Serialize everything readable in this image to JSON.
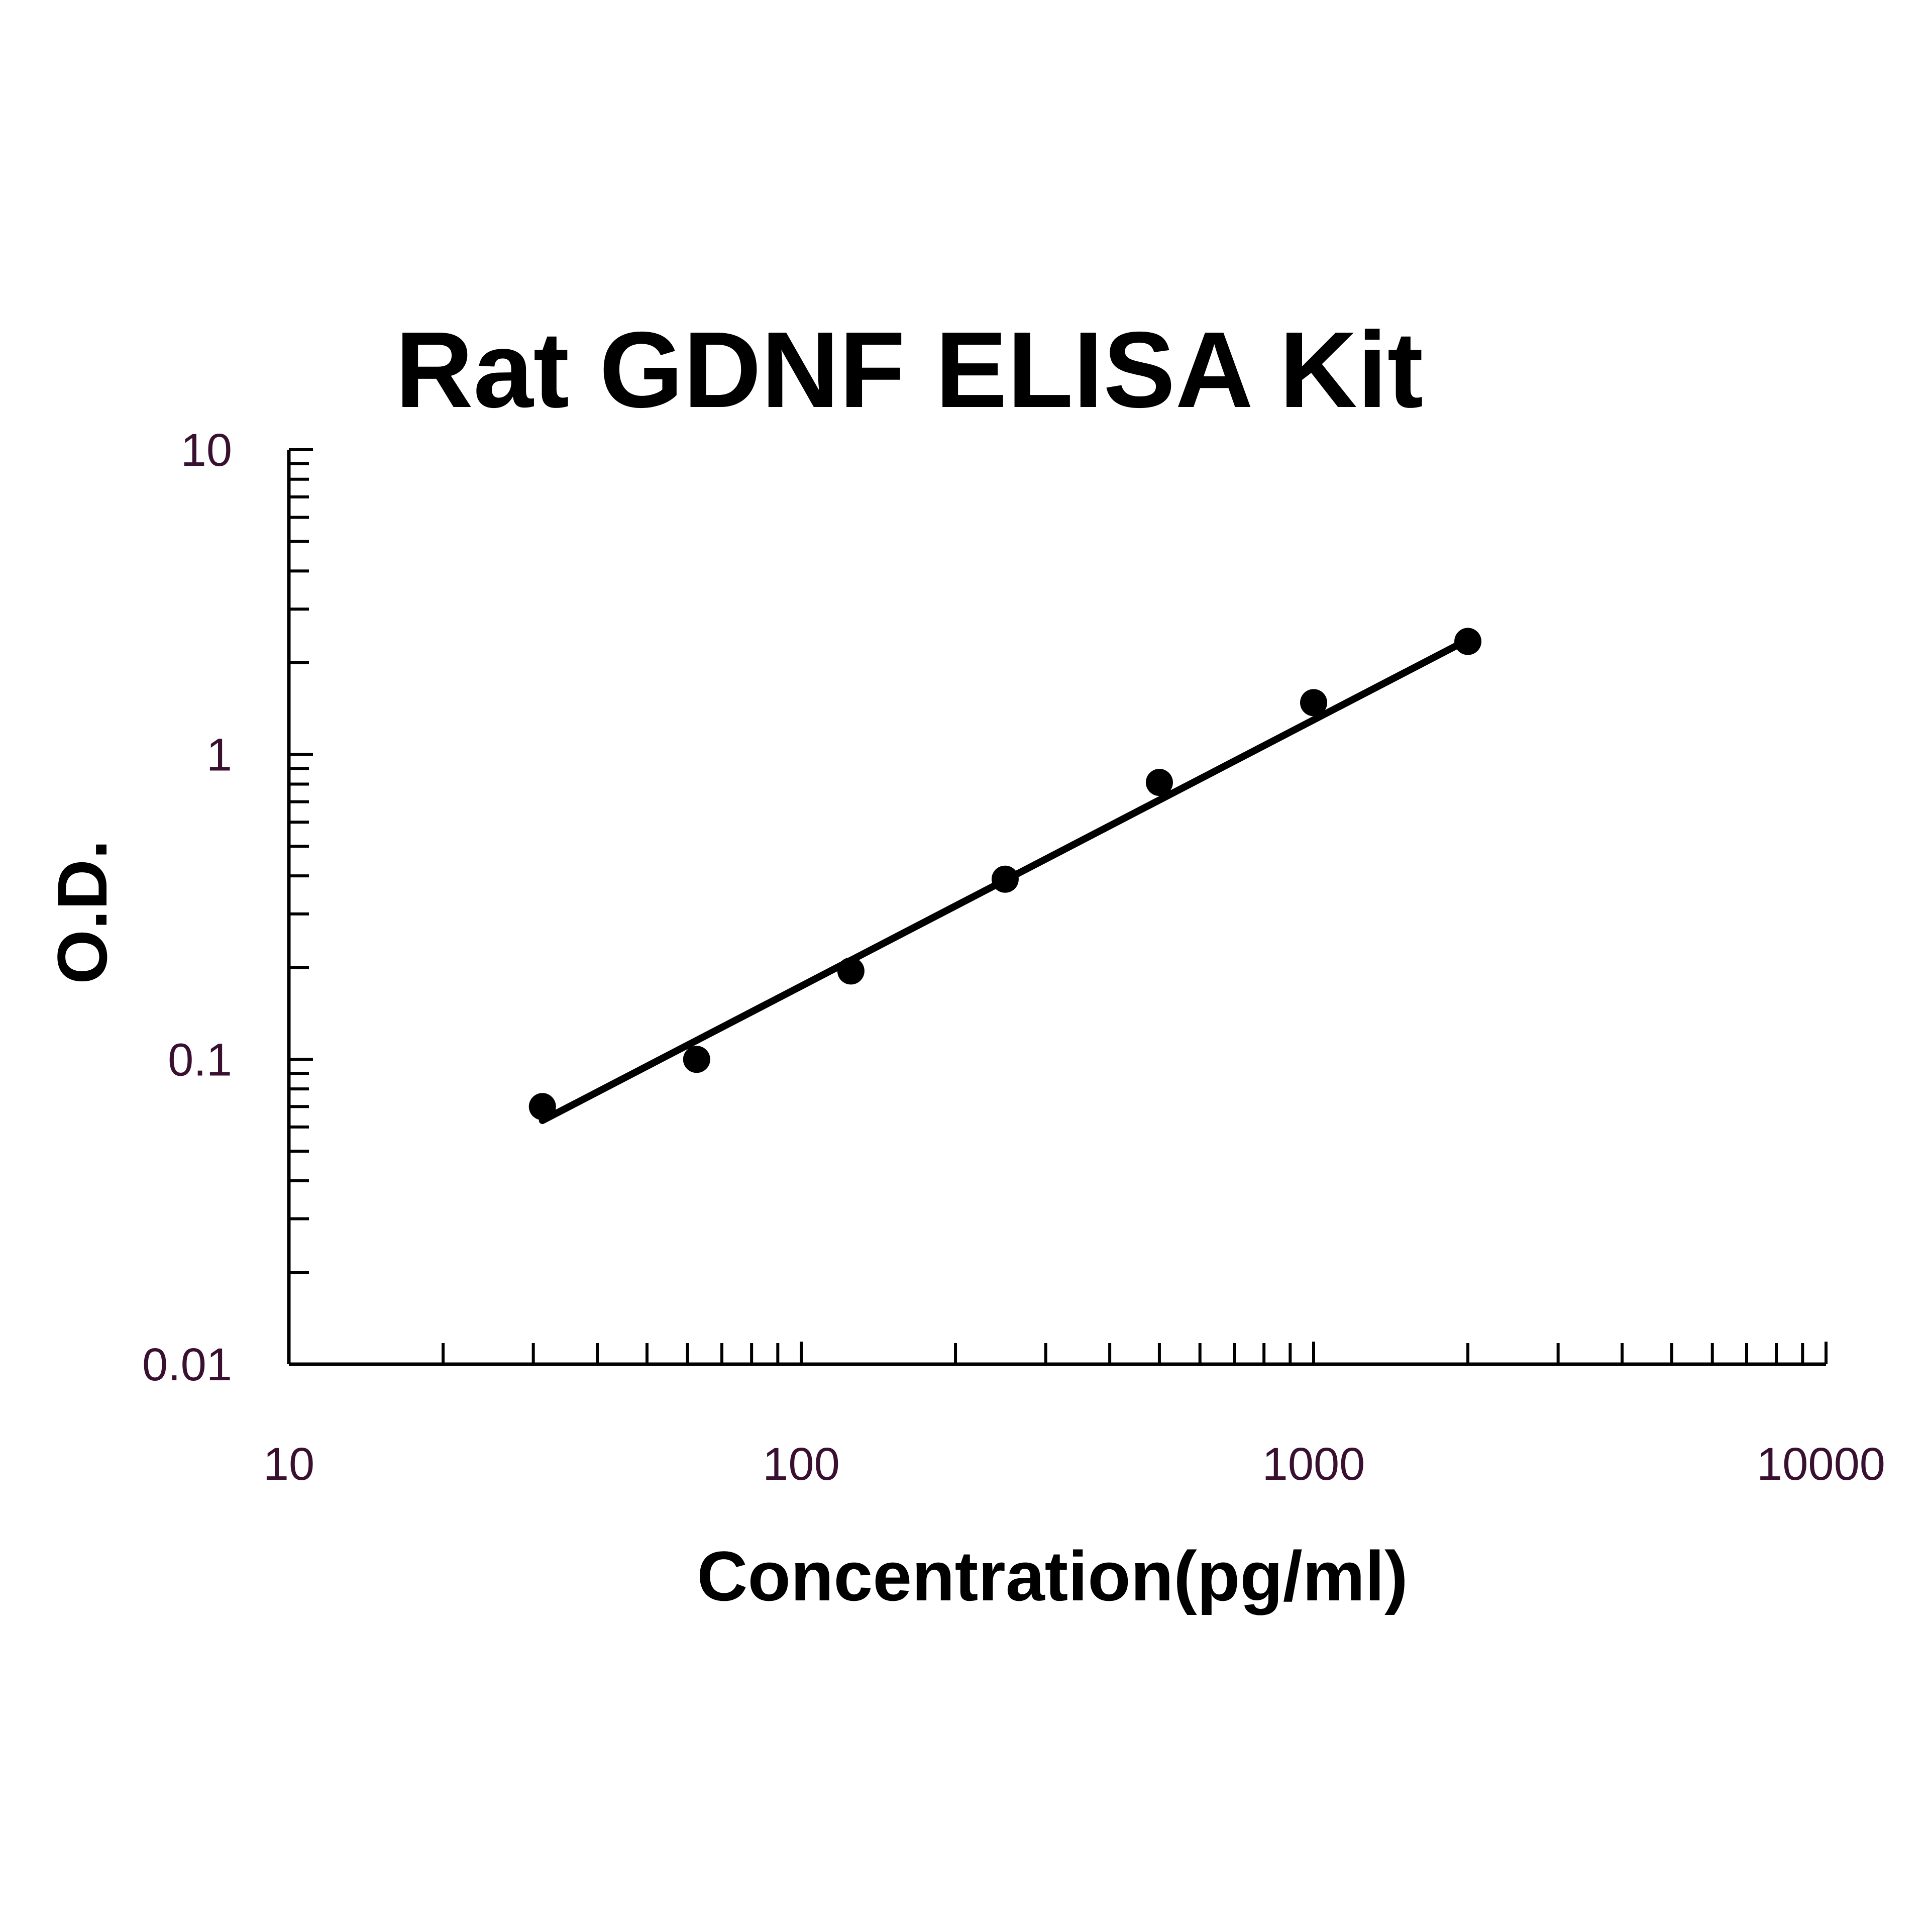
{
  "chart_data": {
    "type": "scatter",
    "title": "Rat GDNF ELISA Kit",
    "xlabel": "Concentration(pg/ml)",
    "ylabel": "O.D.",
    "x_scale": "log",
    "y_scale": "log",
    "xlim": [
      10,
      10000
    ],
    "ylim": [
      0.01,
      10
    ],
    "x_tick_labels": [
      "10",
      "100",
      "1000",
      "10000"
    ],
    "y_tick_labels": [
      "0.01",
      "0.1",
      "1",
      "10"
    ],
    "grid": false,
    "legend": "none",
    "series": [
      {
        "kind": "points",
        "x": [
          31.25,
          62.5,
          125,
          250,
          500,
          1000,
          2000
        ],
        "y": [
          0.07,
          0.1,
          0.195,
          0.39,
          0.81,
          1.48,
          2.35
        ]
      },
      {
        "kind": "fit-line",
        "x": [
          31.25,
          2000
        ],
        "y": [
          0.063,
          2.38
        ]
      }
    ],
    "colors": {
      "marks": "#000000",
      "tick_labels": "#3a1030"
    }
  }
}
